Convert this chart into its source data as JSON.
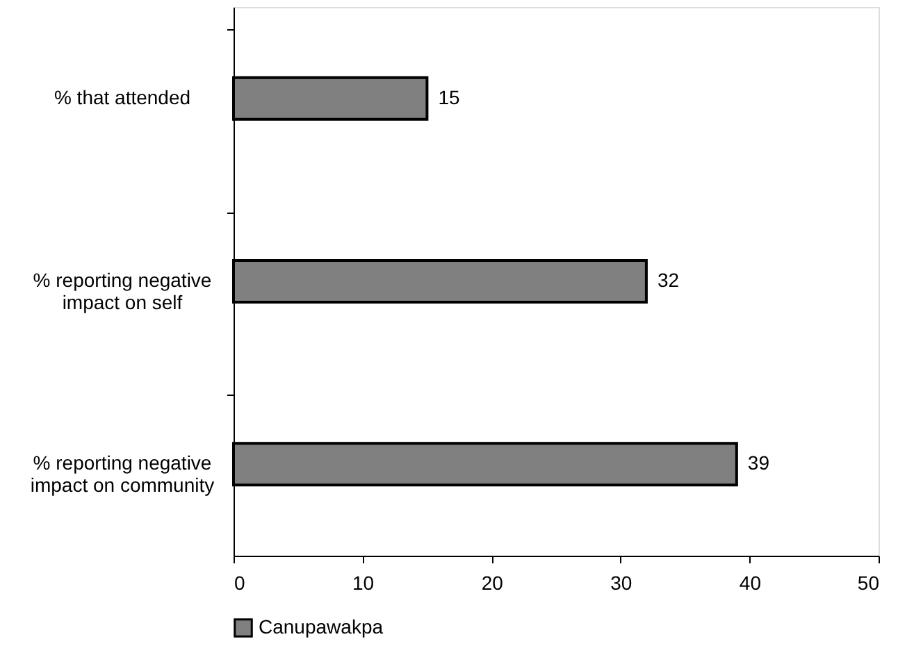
{
  "chart_data": {
    "type": "bar",
    "orientation": "horizontal",
    "categories": [
      "% that attended",
      "% reporting negative impact on self",
      "% reporting negative impact on community"
    ],
    "series": [
      {
        "name": "Canupawakpa",
        "color": "#808080",
        "values": [
          15,
          32,
          39
        ]
      }
    ],
    "xlim": [
      0,
      50
    ],
    "xticks": [
      0,
      10,
      20,
      30,
      40,
      50
    ],
    "grid": false,
    "legend": "bottom",
    "data_labels": true
  }
}
